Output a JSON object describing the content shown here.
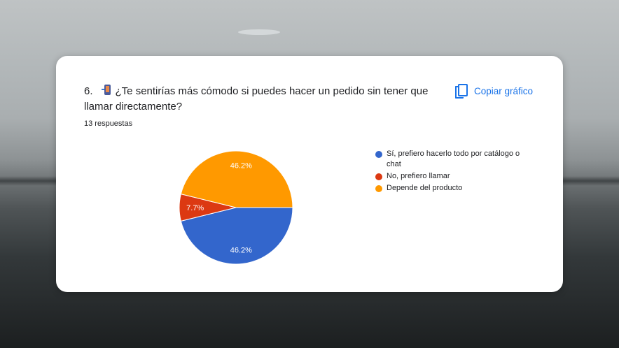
{
  "question": {
    "number": "6.",
    "text": "¿Te sentirías más cómodo si puedes hacer un pedido sin tener que llamar directamente?",
    "emoji": "mobile-phone-arrow-emoji"
  },
  "responses_label": "13 respuestas",
  "copy_button": {
    "label": "Copiar gráfico",
    "icon": "copy-icon"
  },
  "chart_data": {
    "type": "pie",
    "total_responses": 13,
    "slices": [
      {
        "label": "Sí, prefiero hacerlo todo por catálogo o chat",
        "value": 46.2,
        "display": "46.2%",
        "color": "#3366cc"
      },
      {
        "label": "No, prefiero llamar",
        "value": 7.7,
        "display": "7.7%",
        "color": "#dc3912"
      },
      {
        "label": "Depende del producto",
        "value": 46.2,
        "display": "46.2%",
        "color": "#ff9900"
      }
    ],
    "legend_position": "right"
  },
  "legend": {
    "items": [
      {
        "label": "Sí, prefiero hacerlo todo por catálogo o chat",
        "color": "#3366cc"
      },
      {
        "label": "No, prefiero llamar",
        "color": "#dc3912"
      },
      {
        "label": "Depende del producto",
        "color": "#ff9900"
      }
    ]
  }
}
